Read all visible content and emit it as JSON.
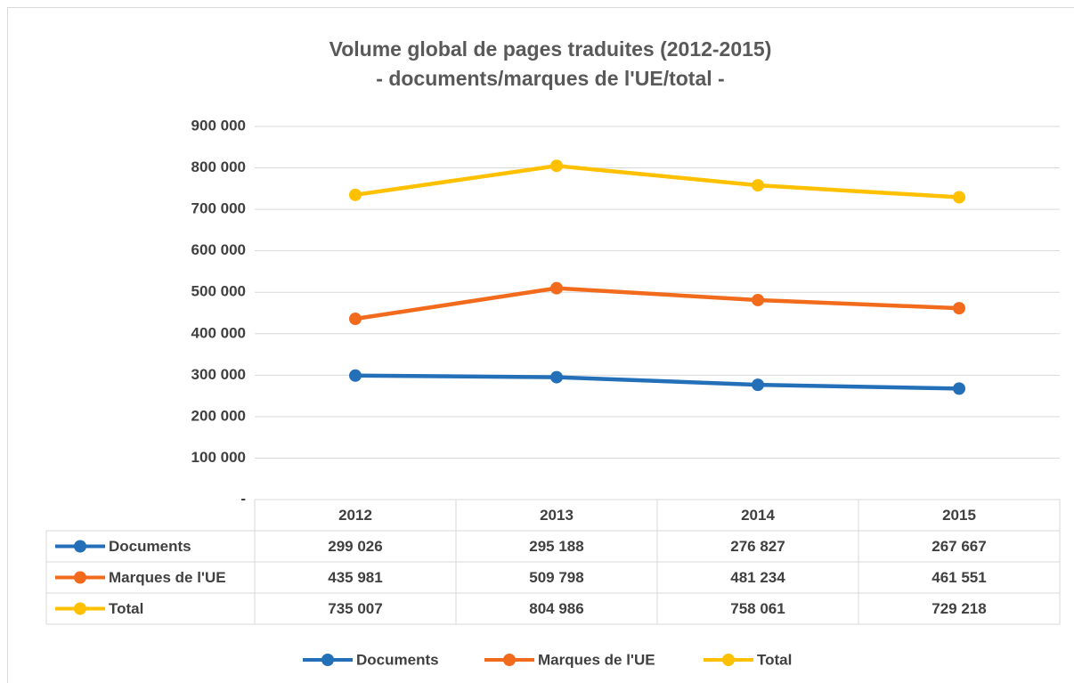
{
  "chart_data": {
    "type": "line",
    "title": "Volume global de pages traduites (2012-2015)",
    "subtitle": "- documents/marques de l'UE/total -",
    "categories": [
      "2012",
      "2013",
      "2014",
      "2015"
    ],
    "series": [
      {
        "name": "Documents",
        "color": "#2370b8",
        "values": [
          299026,
          295188,
          276827,
          267667
        ],
        "value_labels": [
          "299 026",
          "295 188",
          "276 827",
          "267 667"
        ]
      },
      {
        "name": "Marques de l'UE",
        "color": "#f26b1d",
        "values": [
          435981,
          509798,
          481234,
          461551
        ],
        "value_labels": [
          "435 981",
          "509 798",
          "481 234",
          "461 551"
        ]
      },
      {
        "name": "Total",
        "color": "#ffc000",
        "values": [
          735007,
          804986,
          758061,
          729218
        ],
        "value_labels": [
          "735 007",
          "804 986",
          "758 061",
          "729 218"
        ]
      }
    ],
    "ylim": [
      0,
      900000
    ],
    "yticks": [
      {
        "value": 0,
        "label": "-"
      },
      {
        "value": 100000,
        "label": "100 000"
      },
      {
        "value": 200000,
        "label": "200 000"
      },
      {
        "value": 300000,
        "label": "300 000"
      },
      {
        "value": 400000,
        "label": "400 000"
      },
      {
        "value": 500000,
        "label": "500 000"
      },
      {
        "value": 600000,
        "label": "600 000"
      },
      {
        "value": 700000,
        "label": "700 000"
      },
      {
        "value": 800000,
        "label": "800 000"
      },
      {
        "value": 900000,
        "label": "900 000"
      }
    ],
    "grid": true,
    "legend": "bottom"
  }
}
